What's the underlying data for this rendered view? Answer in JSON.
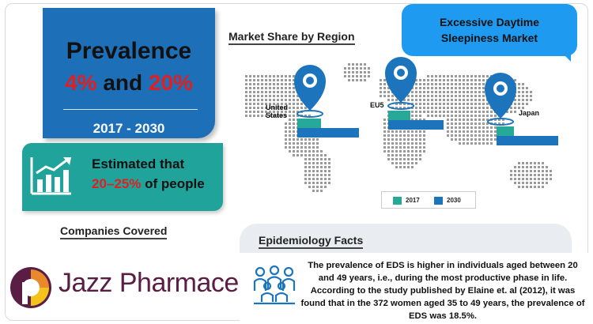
{
  "prevalence": {
    "title": "Prevalence",
    "low": "4%",
    "and": "and",
    "high": "20%",
    "years": "2017 - 2030"
  },
  "estimate": {
    "line1": "Estimated that",
    "range": "20–25%",
    "suffix": "of people",
    "icon": "bar-chart-growth-icon"
  },
  "companies": {
    "title": "Companies Covered",
    "company_name": "Jazz Pharmaceuticals",
    "reg_mark": "®",
    "logo": "jazz-logo-icon"
  },
  "market": {
    "title": "Market Share by Region",
    "bubble_line1": "Excessive Daytime",
    "bubble_line2": "Sleepiness Market"
  },
  "chart_data": {
    "type": "bar",
    "title": "Market Share by Region",
    "categories": [
      "United States",
      "EU5",
      "Japan"
    ],
    "series": [
      {
        "name": "2017",
        "values": [
          30,
          28,
          22
        ]
      },
      {
        "name": "2030",
        "values": [
          78,
          70,
          78
        ]
      }
    ],
    "legend": "bottom",
    "colors": {
      "2017": "#27a99a",
      "2030": "#1c75bc"
    }
  },
  "labels": {
    "us_line1": "United",
    "us_line2": "States",
    "eu5": "EU5",
    "japan": "Japan"
  },
  "epidemiology": {
    "title": "Epidemiology Facts",
    "text": "The prevalence of EDS is higher in individuals aged between 20 and 49 years, i.e., during the most productive phase in life. According to the study published by Elaine et. al (2012), it was found that in the 372 women aged 35 to 49 years, the prevalence of EDS was 18.5%.",
    "icon": "people-group-icon"
  }
}
